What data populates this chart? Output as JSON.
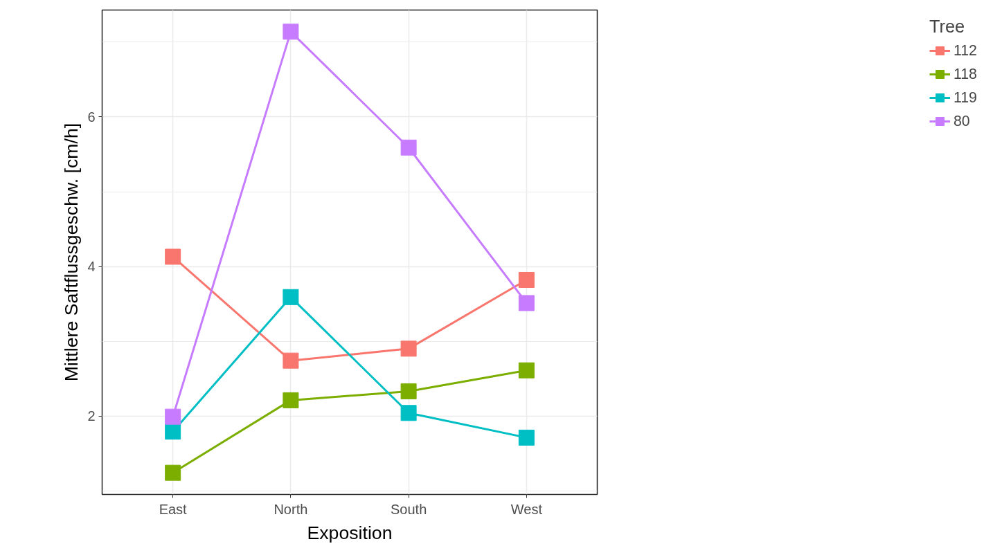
{
  "chart_data": {
    "type": "line",
    "xlabel": "Exposition",
    "ylabel": "Mittlere Saftflussgeschw. [cm/h]",
    "legend_title": "Tree",
    "categories": [
      "East",
      "North",
      "South",
      "West"
    ],
    "series": [
      {
        "name": "112",
        "color": "#f8766d",
        "values": [
          4.13,
          2.74,
          2.9,
          3.82
        ]
      },
      {
        "name": "118",
        "color": "#7cae00",
        "values": [
          1.24,
          2.21,
          2.33,
          2.61
        ]
      },
      {
        "name": "119",
        "color": "#00bfc4",
        "values": [
          1.79,
          3.59,
          2.04,
          1.71
        ]
      },
      {
        "name": "80",
        "color": "#c77cff",
        "values": [
          1.99,
          7.14,
          5.59,
          3.51
        ]
      }
    ],
    "ylim": [
      0.95,
      7.43
    ],
    "yticks": [
      2,
      4,
      6
    ],
    "grid": true,
    "legend": "right",
    "marker": "square",
    "line_style": "solid"
  }
}
